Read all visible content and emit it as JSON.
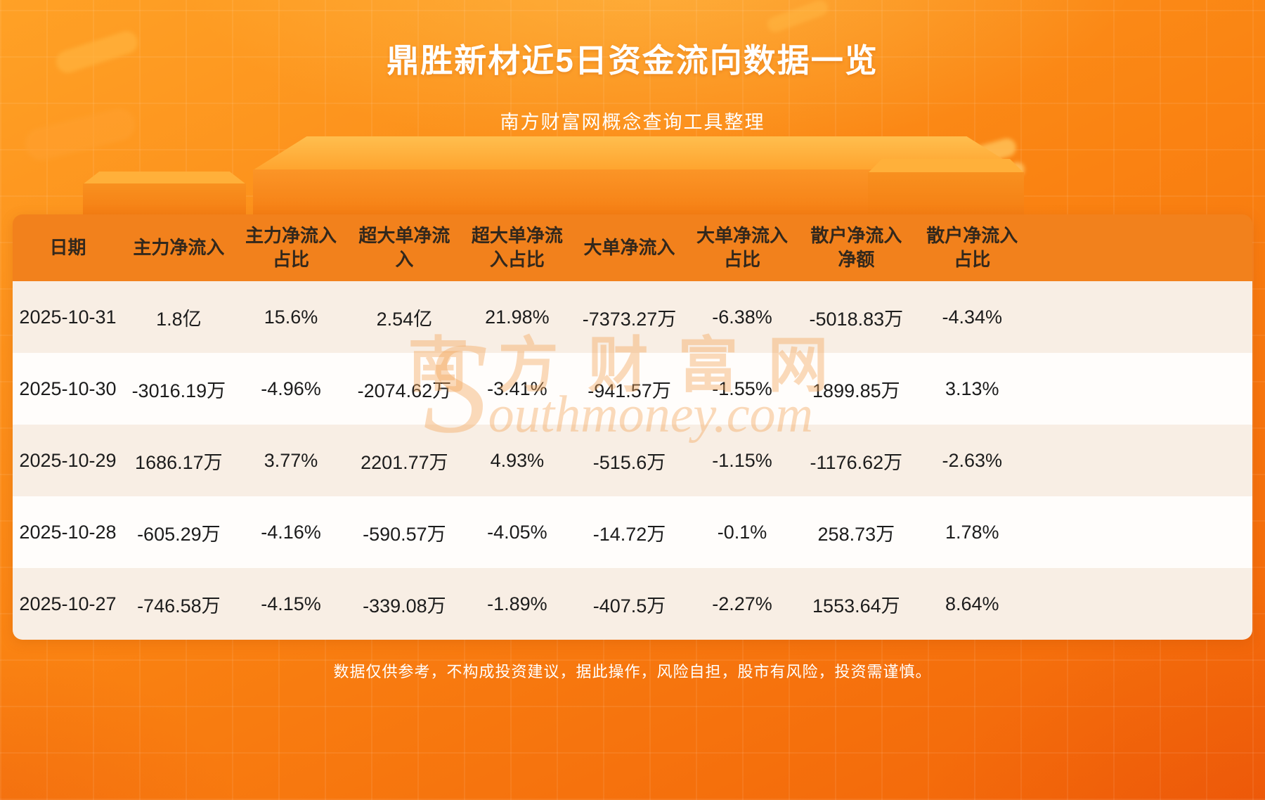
{
  "page": {
    "title": "鼎胜新材近5日资金流向数据一览",
    "subtitle": "南方财富网概念查询工具整理",
    "disclaimer": "数据仅供参考，不构成投资建议，据此操作，风险自担，股市有风险，投资需谨慎。"
  },
  "watermark": {
    "cn": "南方财富网",
    "en": "Southmoney.com"
  },
  "colors": {
    "background_top": "#ffa126",
    "background_bottom": "#f26409",
    "header_background": "#f2811c",
    "row_odd": "#f8eee4",
    "row_even": "#fffdfb",
    "title_text": "#ffffff",
    "body_text": "#1c1c1c"
  },
  "chart_data": {
    "type": "table",
    "title": "鼎胜新材近5日资金流向数据一览",
    "columns": [
      "日期",
      "主力净流入",
      "主力净流入\n占比",
      "超大单净流\n入",
      "超大单净流\n入占比",
      "大单净流入",
      "大单净流入\n占比",
      "散户净流入\n净额",
      "散户净流入\n占比"
    ],
    "rows": [
      [
        "2025-10-31",
        "1.8亿",
        "15.6%",
        "2.54亿",
        "21.98%",
        "-7373.27万",
        "-6.38%",
        "-5018.83万",
        "-4.34%"
      ],
      [
        "2025-10-30",
        "-3016.19万",
        "-4.96%",
        "-2074.62万",
        "-3.41%",
        "-941.57万",
        "-1.55%",
        "1899.85万",
        "3.13%"
      ],
      [
        "2025-10-29",
        "1686.17万",
        "3.77%",
        "2201.77万",
        "4.93%",
        "-515.6万",
        "-1.15%",
        "-1176.62万",
        "-2.63%"
      ],
      [
        "2025-10-28",
        "-605.29万",
        "-4.16%",
        "-590.57万",
        "-4.05%",
        "-14.72万",
        "-0.1%",
        "258.73万",
        "1.78%"
      ],
      [
        "2025-10-27",
        "-746.58万",
        "-4.15%",
        "-339.08万",
        "-1.89%",
        "-407.5万",
        "-2.27%",
        "1553.64万",
        "8.64%"
      ]
    ]
  }
}
